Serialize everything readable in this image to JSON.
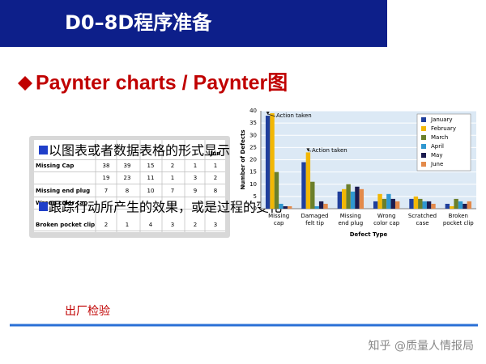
{
  "header": {
    "title": "D0–8D程序准备"
  },
  "heading": "Paynter charts / Paynter图",
  "bullets": [
    "以图表或者数据表格的形式显示",
    "跟踪行动所产生的效果，或是过程的变化"
  ],
  "table": {
    "header_last": "Jun",
    "rows": [
      {
        "label": "Missing Cap",
        "values": [
          38,
          39,
          15,
          2,
          1,
          1
        ]
      },
      {
        "values": [
          19,
          23,
          11,
          1,
          3,
          2
        ]
      },
      {
        "label": "Missing end plug",
        "values": [
          7,
          8,
          10,
          7,
          9,
          8
        ]
      },
      {
        "label": "Wrong color cap"
      },
      {
        "label": "Broken pocket clip",
        "values": [
          2,
          1,
          4,
          3,
          2,
          3
        ]
      }
    ]
  },
  "chart_data": {
    "type": "bar",
    "x_label": "Defect Type",
    "y_label": "Number of Defects",
    "categories": [
      [
        "Missing",
        "cap"
      ],
      [
        "Damaged",
        "felt tip"
      ],
      [
        "Missing",
        "end plug"
      ],
      [
        "Wrong",
        "color cap"
      ],
      [
        "Scratched",
        "case"
      ],
      [
        "Broken",
        "pocket clip"
      ]
    ],
    "series": [
      {
        "name": "January",
        "color": "#1f3f9c",
        "values": [
          38,
          19,
          7,
          3,
          4,
          2
        ]
      },
      {
        "name": "February",
        "color": "#f2b705",
        "values": [
          39,
          23,
          8,
          6,
          5,
          1
        ]
      },
      {
        "name": "March",
        "color": "#6b7f2a",
        "values": [
          15,
          11,
          10,
          4,
          4,
          4
        ]
      },
      {
        "name": "April",
        "color": "#2f97d0",
        "values": [
          2,
          1,
          7,
          6,
          3,
          3
        ]
      },
      {
        "name": "May",
        "color": "#1b1b4f",
        "values": [
          1,
          3,
          9,
          4,
          3,
          2
        ]
      },
      {
        "name": "June",
        "color": "#e38a4b",
        "values": [
          1,
          2,
          8,
          3,
          2,
          3
        ]
      }
    ],
    "annotations": [
      "Action taken",
      "Action taken"
    ],
    "ylim": [
      0,
      40
    ],
    "yticks": [
      0,
      5,
      10,
      15,
      20,
      25,
      30,
      35,
      40
    ],
    "grid": true
  },
  "footer": {
    "label": "出厂检验",
    "watermark": "知乎 @质量人情报局"
  }
}
